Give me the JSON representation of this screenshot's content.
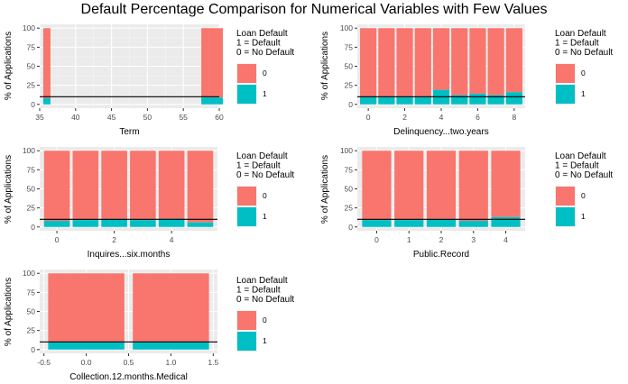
{
  "title": "Default Percentage Comparison for Numerical Variables with Few Values",
  "legend": {
    "title_lines": [
      "Loan Default",
      "1 = Default",
      "0 = No Default"
    ],
    "entries": [
      {
        "key": "0",
        "color": "#F8766D"
      },
      {
        "key": "1",
        "color": "#00BFC4"
      }
    ]
  },
  "ylabel": "% of Applications",
  "chart_data": [
    {
      "type": "bar",
      "stacked": true,
      "xlabel": "Term",
      "xlim": [
        35,
        60
      ],
      "xticks": [
        35,
        40,
        45,
        50,
        55,
        60
      ],
      "ylim": [
        0,
        100
      ],
      "yticks": [
        0,
        25,
        50,
        75,
        100
      ],
      "reference_line": 10,
      "bar_width": 1,
      "bars": [
        {
          "x": 36,
          "default": 8
        },
        {
          "x": 58,
          "default": 9
        },
        {
          "x": 59,
          "default": 9
        },
        {
          "x": 60,
          "default": 9
        }
      ]
    },
    {
      "type": "bar",
      "stacked": true,
      "xlabel": "Delinquency...two.years",
      "xlim": [
        -0.6,
        8.6
      ],
      "xticks": [
        0,
        2,
        4,
        6,
        8
      ],
      "ylim": [
        0,
        100
      ],
      "yticks": [
        0,
        25,
        50,
        75,
        100
      ],
      "reference_line": 10,
      "bar_width": 0.9,
      "bars": [
        {
          "x": 0,
          "default": 10
        },
        {
          "x": 1,
          "default": 10
        },
        {
          "x": 2,
          "default": 10
        },
        {
          "x": 3,
          "default": 10
        },
        {
          "x": 4,
          "default": 19
        },
        {
          "x": 5,
          "default": 12
        },
        {
          "x": 6,
          "default": 14
        },
        {
          "x": 7,
          "default": 12
        },
        {
          "x": 8,
          "default": 16
        }
      ]
    },
    {
      "type": "bar",
      "stacked": true,
      "xlabel": "Inquires...six.months",
      "xlim": [
        -0.6,
        5.6
      ],
      "xticks": [
        0,
        2,
        4
      ],
      "ylim": [
        0,
        100
      ],
      "yticks": [
        0,
        25,
        50,
        75,
        100
      ],
      "reference_line": 10,
      "bar_width": 0.9,
      "bars": [
        {
          "x": 0,
          "default": 8
        },
        {
          "x": 1,
          "default": 9
        },
        {
          "x": 2,
          "default": 10
        },
        {
          "x": 3,
          "default": 9
        },
        {
          "x": 4,
          "default": 11
        },
        {
          "x": 5,
          "default": 6
        }
      ]
    },
    {
      "type": "bar",
      "stacked": true,
      "xlabel": "Public.Record",
      "xlim": [
        -0.6,
        4.6
      ],
      "xticks": [
        0,
        1,
        2,
        3,
        4
      ],
      "ylim": [
        0,
        100
      ],
      "yticks": [
        0,
        25,
        50,
        75,
        100
      ],
      "reference_line": 10,
      "bar_width": 0.9,
      "bars": [
        {
          "x": 0,
          "default": 9
        },
        {
          "x": 1,
          "default": 9
        },
        {
          "x": 2,
          "default": 10
        },
        {
          "x": 3,
          "default": 8
        },
        {
          "x": 4,
          "default": 13
        }
      ]
    },
    {
      "type": "bar",
      "stacked": true,
      "xlabel": "Collection.12.months.Medical",
      "xlim": [
        -0.55,
        1.55
      ],
      "xticks": [
        -0.5,
        0.0,
        0.5,
        1.0,
        1.5
      ],
      "xtick_labels": [
        "-0.5",
        "0.0",
        "0.5",
        "1.0",
        "1.5"
      ],
      "ylim": [
        0,
        100
      ],
      "yticks": [
        0,
        25,
        50,
        75,
        100
      ],
      "reference_line": 10,
      "bar_width": 0.9,
      "bars": [
        {
          "x": 0,
          "default": 10
        },
        {
          "x": 1,
          "default": 10
        }
      ]
    }
  ]
}
